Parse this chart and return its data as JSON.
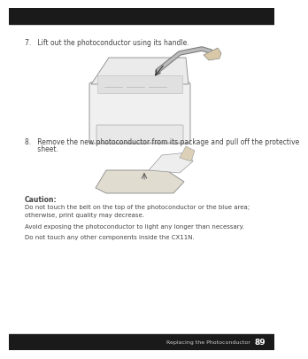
{
  "page_bg": "#ffffff",
  "header_bg": "#1a1a1a",
  "footer_bg": "#1a1a1a",
  "text_color": "#444444",
  "step7_text": "7.   Lift out the photoconductor using its handle.",
  "step8_line1": "8.   Remove the new photoconductor from its package and pull off the protective",
  "step8_line2": "      sheet.",
  "caution_label": "Caution:",
  "caution_line1": "Do not touch the belt on the top of the photoconductor or the blue area;",
  "caution_line2": "otherwise, print quality may decrease.",
  "caution_line3": "Avoid exposing the photoconductor to light any longer than necessary.",
  "caution_line4": "Do not touch any other components inside the CX11N.",
  "footer_text": "Replacing the Photoconductor",
  "footer_page": "89",
  "footer_text_color": "#cccccc",
  "footer_page_color": "#ffffff"
}
